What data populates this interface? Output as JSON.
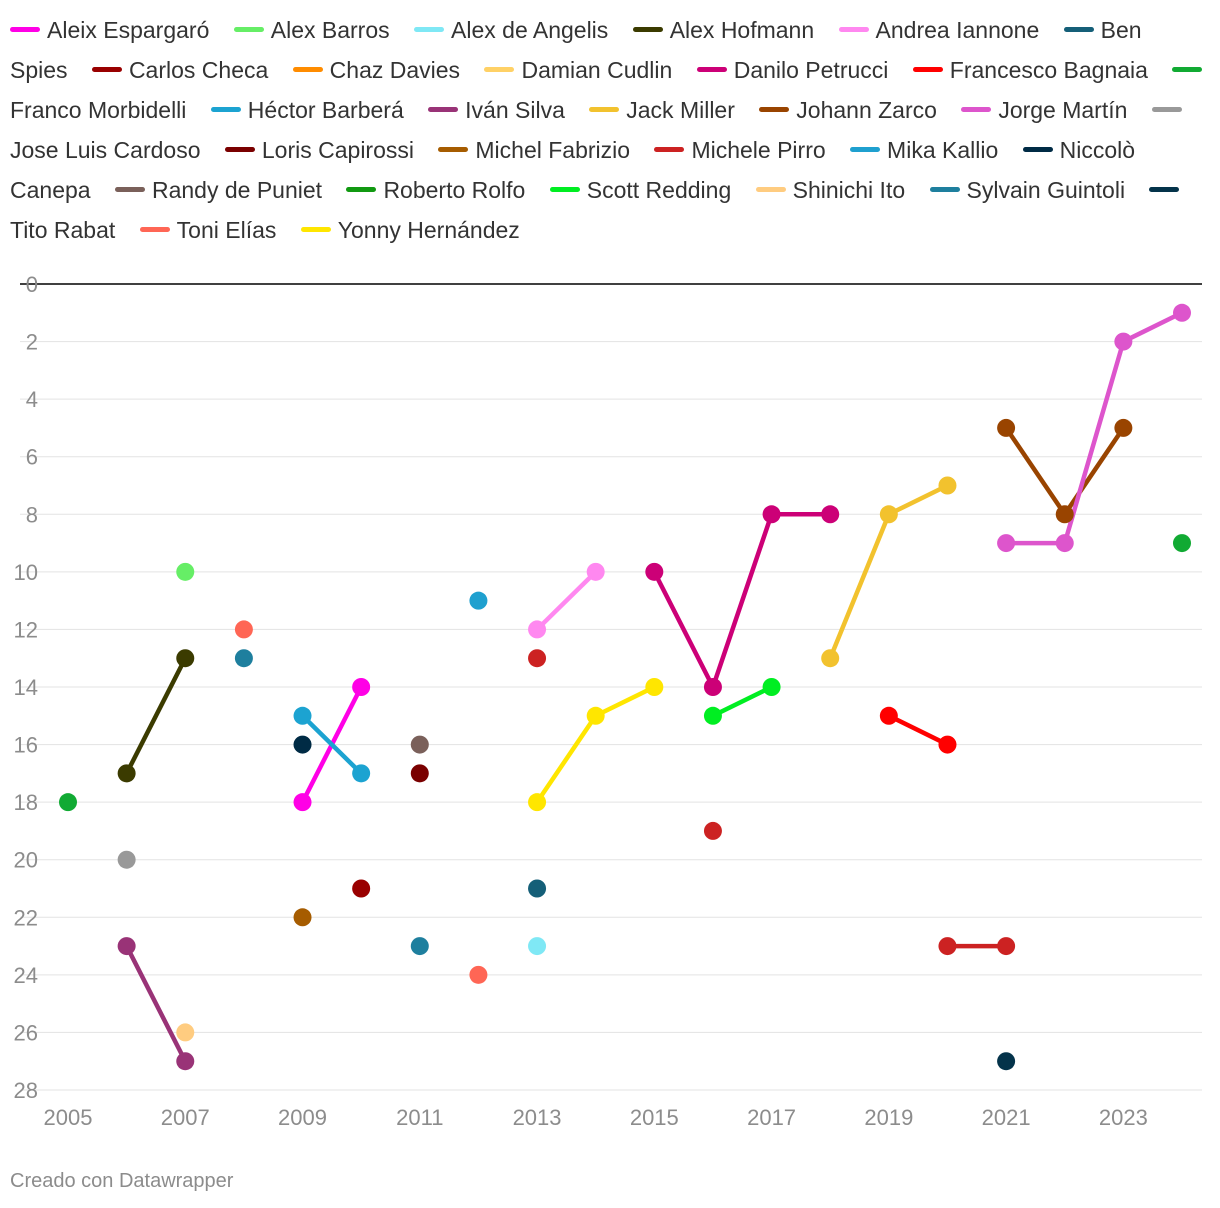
{
  "chart_data": {
    "type": "line",
    "title": "",
    "xlabel": "",
    "ylabel": "",
    "xlim": [
      2005,
      2024
    ],
    "ylim": [
      0,
      28
    ],
    "y_inverted": true,
    "x_ticks": [
      2005,
      2007,
      2009,
      2011,
      2013,
      2015,
      2017,
      2019,
      2021,
      2023
    ],
    "y_ticks": [
      0,
      2,
      4,
      6,
      8,
      10,
      12,
      14,
      16,
      18,
      20,
      22,
      24,
      26,
      28
    ],
    "grid": "horizontal",
    "legend_position": "top",
    "series": [
      {
        "name": "Aleix Espargaró",
        "color": "#ff00e6",
        "points": [
          [
            2009,
            18
          ],
          [
            2010,
            14
          ]
        ]
      },
      {
        "name": "Alex Barros",
        "color": "#66ee66",
        "points": [
          [
            2007,
            10
          ]
        ]
      },
      {
        "name": "Alex de Angelis",
        "color": "#7fe8f5",
        "points": [
          [
            2013,
            23
          ]
        ]
      },
      {
        "name": "Alex Hofmann",
        "color": "#3b3b00",
        "points": [
          [
            2006,
            17
          ],
          [
            2007,
            13
          ]
        ]
      },
      {
        "name": "Andrea Iannone",
        "color": "#ff88f0",
        "points": [
          [
            2013,
            12
          ],
          [
            2014,
            10
          ]
        ]
      },
      {
        "name": "Ben Spies",
        "color": "#155f78",
        "points": [
          [
            2013,
            21
          ]
        ]
      },
      {
        "name": "Carlos Checa",
        "color": "#990000",
        "points": [
          [
            2010,
            21
          ]
        ]
      },
      {
        "name": "Chaz Davies",
        "color": "#ff8c00",
        "points": []
      },
      {
        "name": "Damian Cudlin",
        "color": "#ffd166",
        "points": []
      },
      {
        "name": "Danilo Petrucci",
        "color": "#cc0077",
        "points": [
          [
            2015,
            10
          ],
          [
            2016,
            14
          ],
          [
            2017,
            8
          ],
          [
            2018,
            8
          ]
        ]
      },
      {
        "name": "Francesco Bagnaia",
        "color": "#ff0000",
        "points": [
          [
            2019,
            15
          ],
          [
            2020,
            16
          ]
        ]
      },
      {
        "name": "Franco Morbidelli",
        "color": "#11aa33",
        "points": [
          [
            2005,
            18
          ],
          [
            2024,
            9
          ]
        ]
      },
      {
        "name": "Héctor Barberá",
        "color": "#1ca3d1",
        "points": [
          [
            2009,
            15
          ],
          [
            2010,
            17
          ]
        ]
      },
      {
        "name": "Iván Silva",
        "color": "#993377",
        "points": [
          [
            2006,
            23
          ],
          [
            2007,
            27
          ]
        ]
      },
      {
        "name": "Jack Miller",
        "color": "#f2c22e",
        "points": [
          [
            2018,
            13
          ],
          [
            2019,
            8
          ],
          [
            2020,
            7
          ]
        ]
      },
      {
        "name": "Johann Zarco",
        "color": "#994400",
        "points": [
          [
            2021,
            5
          ],
          [
            2022,
            8
          ],
          [
            2023,
            5
          ]
        ]
      },
      {
        "name": "Jorge Martín",
        "color": "#dd55cc",
        "points": [
          [
            2021,
            9
          ],
          [
            2022,
            9
          ],
          [
            2023,
            2
          ],
          [
            2024,
            1
          ]
        ]
      },
      {
        "name": "Jose Luis Cardoso",
        "color": "#999999",
        "points": [
          [
            2006,
            20
          ]
        ]
      },
      {
        "name": "Loris Capirossi",
        "color": "#7a0000",
        "points": [
          [
            2011,
            17
          ]
        ]
      },
      {
        "name": "Michel Fabrizio",
        "color": "#a65c00",
        "points": [
          [
            2009,
            22
          ]
        ]
      },
      {
        "name": "Michele Pirro",
        "color": "#cc2222",
        "points": [
          [
            2013,
            13
          ],
          [
            2016,
            19
          ],
          [
            2020,
            23
          ],
          [
            2021,
            23
          ]
        ]
      },
      {
        "name": "Mika Kallio",
        "color": "#1fa0cf",
        "points": [
          [
            2012,
            11
          ]
        ]
      },
      {
        "name": "Niccolò Canepa",
        "color": "#002b45",
        "points": [
          [
            2009,
            16
          ]
        ]
      },
      {
        "name": "Randy de Puniet",
        "color": "#7a605a",
        "points": [
          [
            2011,
            16
          ]
        ]
      },
      {
        "name": "Roberto Rolfo",
        "color": "#119911",
        "points": []
      },
      {
        "name": "Scott Redding",
        "color": "#00ee22",
        "points": [
          [
            2016,
            15
          ],
          [
            2017,
            14
          ]
        ]
      },
      {
        "name": "Shinichi Ito",
        "color": "#ffcc80",
        "points": [
          [
            2007,
            26
          ]
        ]
      },
      {
        "name": "Sylvain Guintoli",
        "color": "#1e7f9e",
        "points": [
          [
            2008,
            13
          ],
          [
            2011,
            23
          ]
        ]
      },
      {
        "name": "Tito Rabat",
        "color": "#04334a",
        "points": [
          [
            2021,
            27
          ]
        ]
      },
      {
        "name": "Toni Elías",
        "color": "#ff6655",
        "points": [
          [
            2008,
            12
          ],
          [
            2012,
            24
          ]
        ]
      },
      {
        "name": "Yonny Hernández",
        "color": "#ffe600",
        "points": [
          [
            2013,
            18
          ],
          [
            2014,
            15
          ],
          [
            2015,
            14
          ]
        ]
      }
    ]
  },
  "footer": {
    "credit": "Creado con Datawrapper"
  }
}
